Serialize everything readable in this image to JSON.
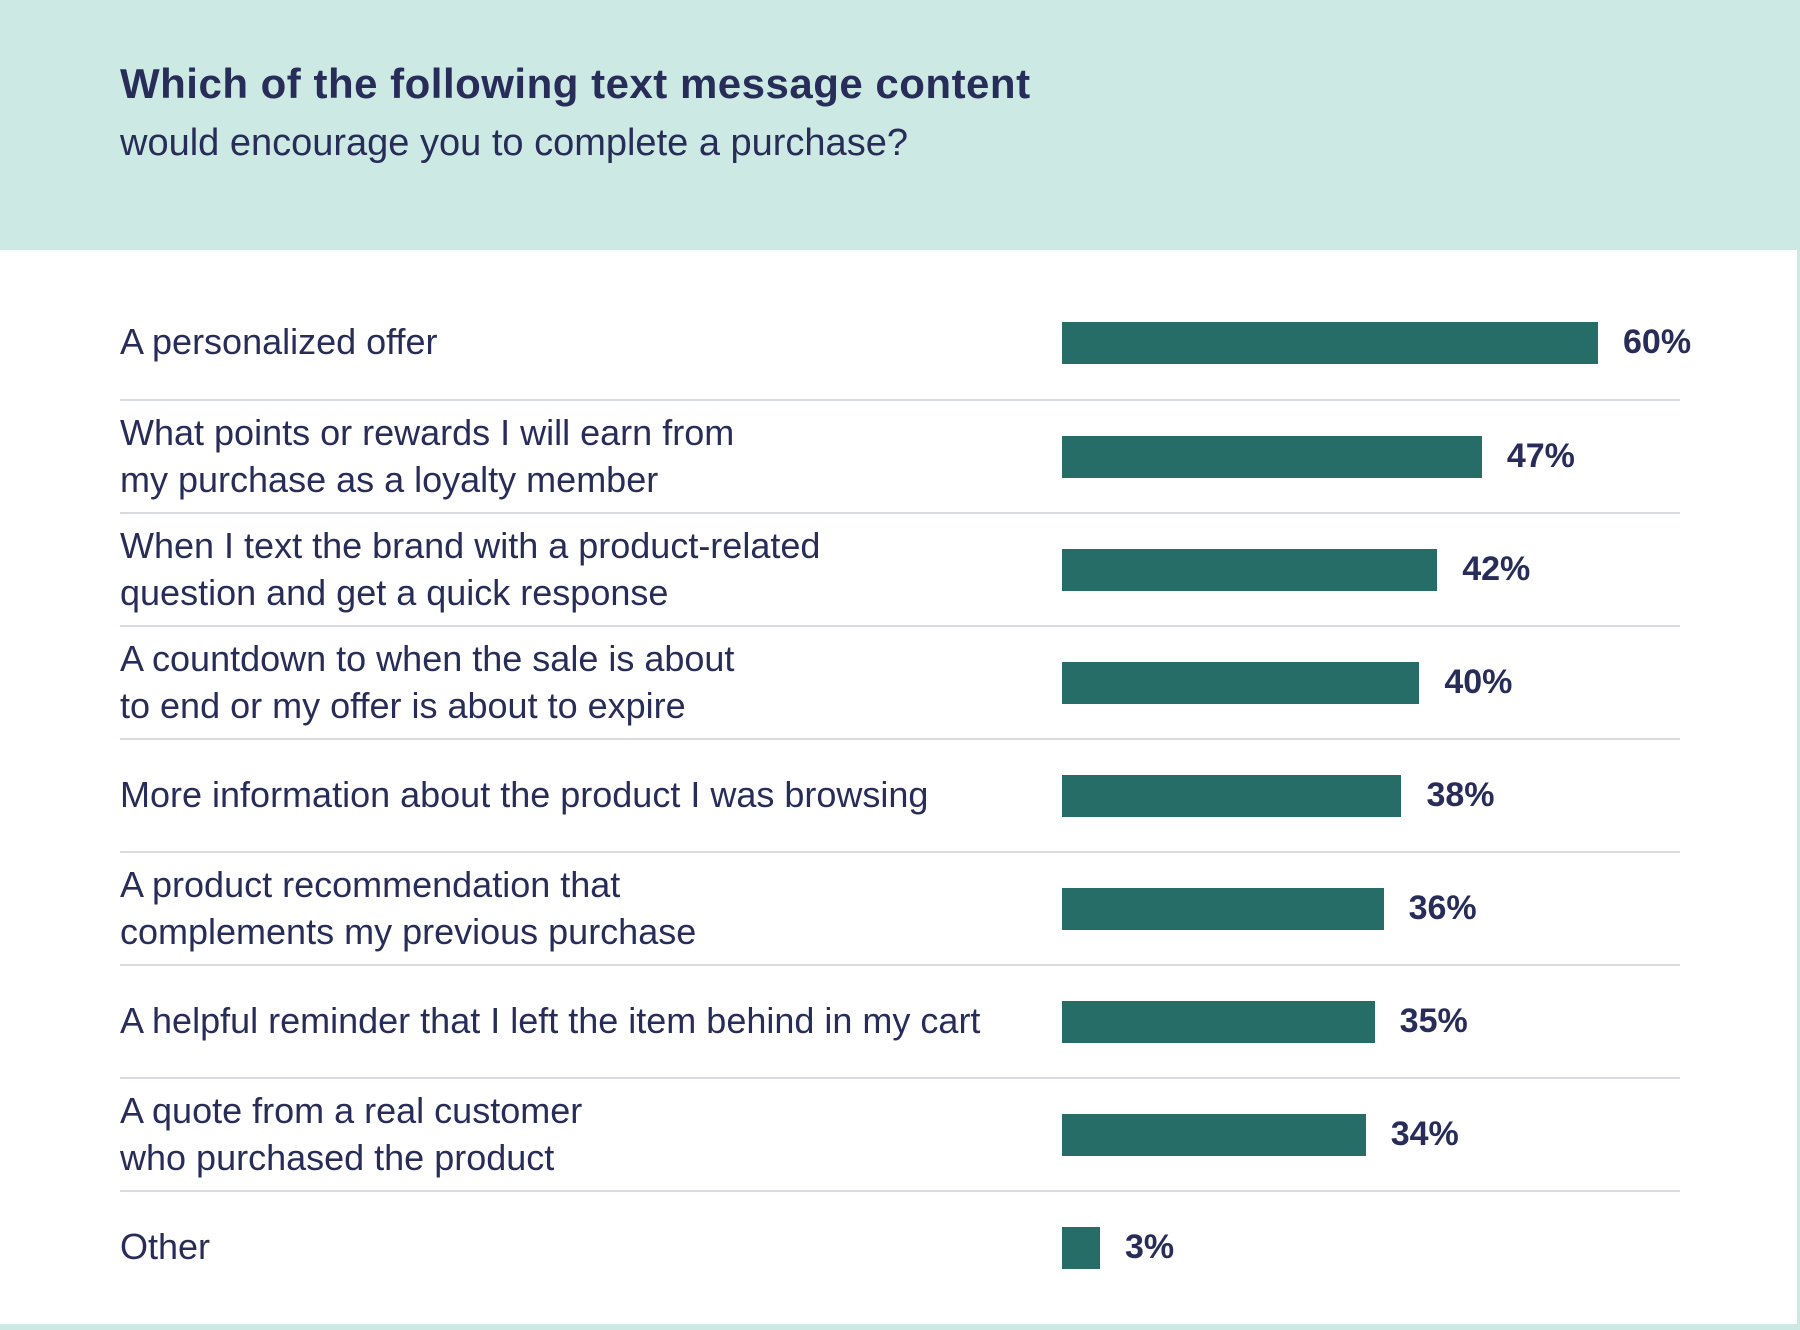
{
  "header": {
    "title": "Which of the following text message content",
    "subtitle": "would encourage you to complete a purchase?"
  },
  "chart_data": {
    "type": "bar",
    "orientation": "horizontal",
    "title": "Which of the following text message content would encourage you to complete a purchase?",
    "categories": [
      "A personalized offer",
      "What points or rewards I will earn from\nmy purchase as a loyalty member",
      "When I text the brand with a product-related\nquestion  and get a quick response",
      "A countdown to when the sale is about\nto end or my offer is about to expire",
      "More information about the product I was browsing",
      "A product recommendation that\ncomplements my previous purchase",
      "A helpful reminder that I left the item behind in my cart",
      "A quote from a real customer\nwho purchased the product",
      "Other"
    ],
    "values": [
      60,
      47,
      42,
      40,
      38,
      36,
      35,
      34,
      3
    ],
    "value_labels": [
      "60%",
      "47%",
      "42%",
      "40%",
      "38%",
      "36%",
      "35%",
      "34%",
      "3%"
    ],
    "unit": "%",
    "xlim": [
      0,
      60
    ],
    "grid": "row-dividers",
    "legend": "none",
    "bar_color": "#266d68",
    "text_color": "#272d58",
    "divider_color": "#d9dbe4",
    "header_bg": "#cce9e3",
    "body_bg": "#ffffff"
  }
}
